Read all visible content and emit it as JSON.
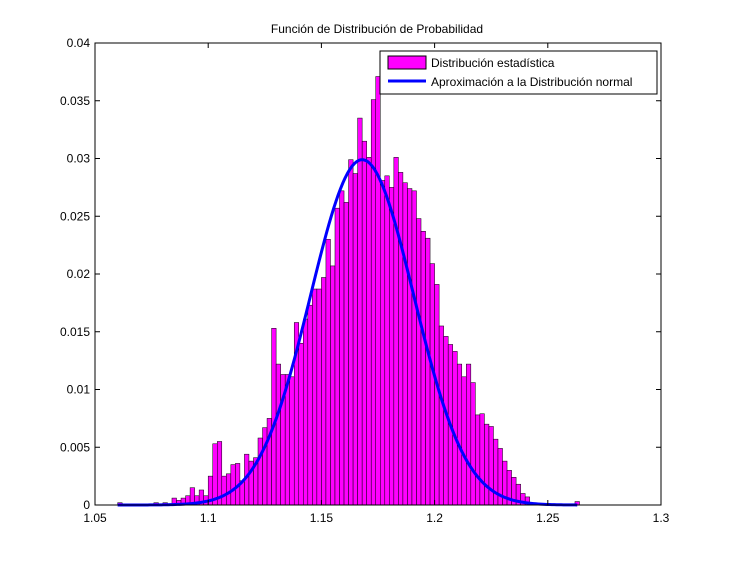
{
  "chart_data": {
    "type": "bar",
    "title": "Función de Distribución de Probabilidad",
    "xlabel": "",
    "ylabel": "",
    "xlim": [
      1.05,
      1.3
    ],
    "ylim": [
      0,
      0.04
    ],
    "xticks": [
      "1.05",
      "1.1",
      "1.15",
      "1.2",
      "1.25",
      "1.3"
    ],
    "yticks": [
      "0",
      "0.005",
      "0.01",
      "0.015",
      "0.02",
      "0.025",
      "0.03",
      "0.035",
      "0.04"
    ],
    "grid": false,
    "legend_position": "top-right",
    "bar_color": "#ff00ff",
    "line_color": "#0000ff",
    "bin_width": 0.002,
    "histogram": {
      "name": "Distribución estadística",
      "x": [
        1.061,
        1.077,
        1.081,
        1.085,
        1.087,
        1.089,
        1.091,
        1.093,
        1.095,
        1.097,
        1.099,
        1.101,
        1.103,
        1.105,
        1.107,
        1.109,
        1.111,
        1.113,
        1.115,
        1.117,
        1.119,
        1.121,
        1.123,
        1.125,
        1.127,
        1.129,
        1.131,
        1.133,
        1.135,
        1.137,
        1.139,
        1.141,
        1.143,
        1.145,
        1.147,
        1.149,
        1.151,
        1.153,
        1.155,
        1.157,
        1.159,
        1.161,
        1.163,
        1.165,
        1.167,
        1.169,
        1.171,
        1.173,
        1.175,
        1.177,
        1.179,
        1.181,
        1.183,
        1.185,
        1.187,
        1.189,
        1.191,
        1.193,
        1.195,
        1.197,
        1.199,
        1.201,
        1.203,
        1.205,
        1.207,
        1.209,
        1.211,
        1.213,
        1.215,
        1.217,
        1.219,
        1.221,
        1.223,
        1.225,
        1.227,
        1.229,
        1.231,
        1.233,
        1.235,
        1.237,
        1.239,
        1.241,
        1.263
      ],
      "values": [
        0.0002,
        0.0002,
        0.0002,
        0.0006,
        0.0004,
        0.0006,
        0.0008,
        0.0015,
        0.0008,
        0.0013,
        0.0008,
        0.0025,
        0.0053,
        0.0055,
        0.0025,
        0.0027,
        0.0035,
        0.0036,
        0.0021,
        0.0044,
        0.0038,
        0.0041,
        0.0058,
        0.0067,
        0.0075,
        0.0153,
        0.0122,
        0.0113,
        0.0113,
        0.0111,
        0.0158,
        0.014,
        0.0161,
        0.0173,
        0.0187,
        0.0187,
        0.0197,
        0.023,
        0.0207,
        0.0257,
        0.0272,
        0.0262,
        0.0299,
        0.0287,
        0.0335,
        0.0315,
        0.0301,
        0.0351,
        0.0371,
        0.0281,
        0.0285,
        0.0275,
        0.0301,
        0.0288,
        0.0279,
        0.0274,
        0.0272,
        0.0248,
        0.0237,
        0.0231,
        0.0209,
        0.0191,
        0.0155,
        0.0146,
        0.0139,
        0.0133,
        0.0122,
        0.0111,
        0.0122,
        0.0106,
        0.0078,
        0.0079,
        0.007,
        0.0068,
        0.0057,
        0.0049,
        0.0038,
        0.003,
        0.0024,
        0.0018,
        0.001,
        0.0007,
        0.0003
      ]
    },
    "normal_fit": {
      "name": "Aproximación a la Distribución normal",
      "mean": 1.168,
      "sd": 0.0228,
      "peak": 0.0299,
      "x_range": [
        1.06,
        1.263
      ]
    }
  }
}
